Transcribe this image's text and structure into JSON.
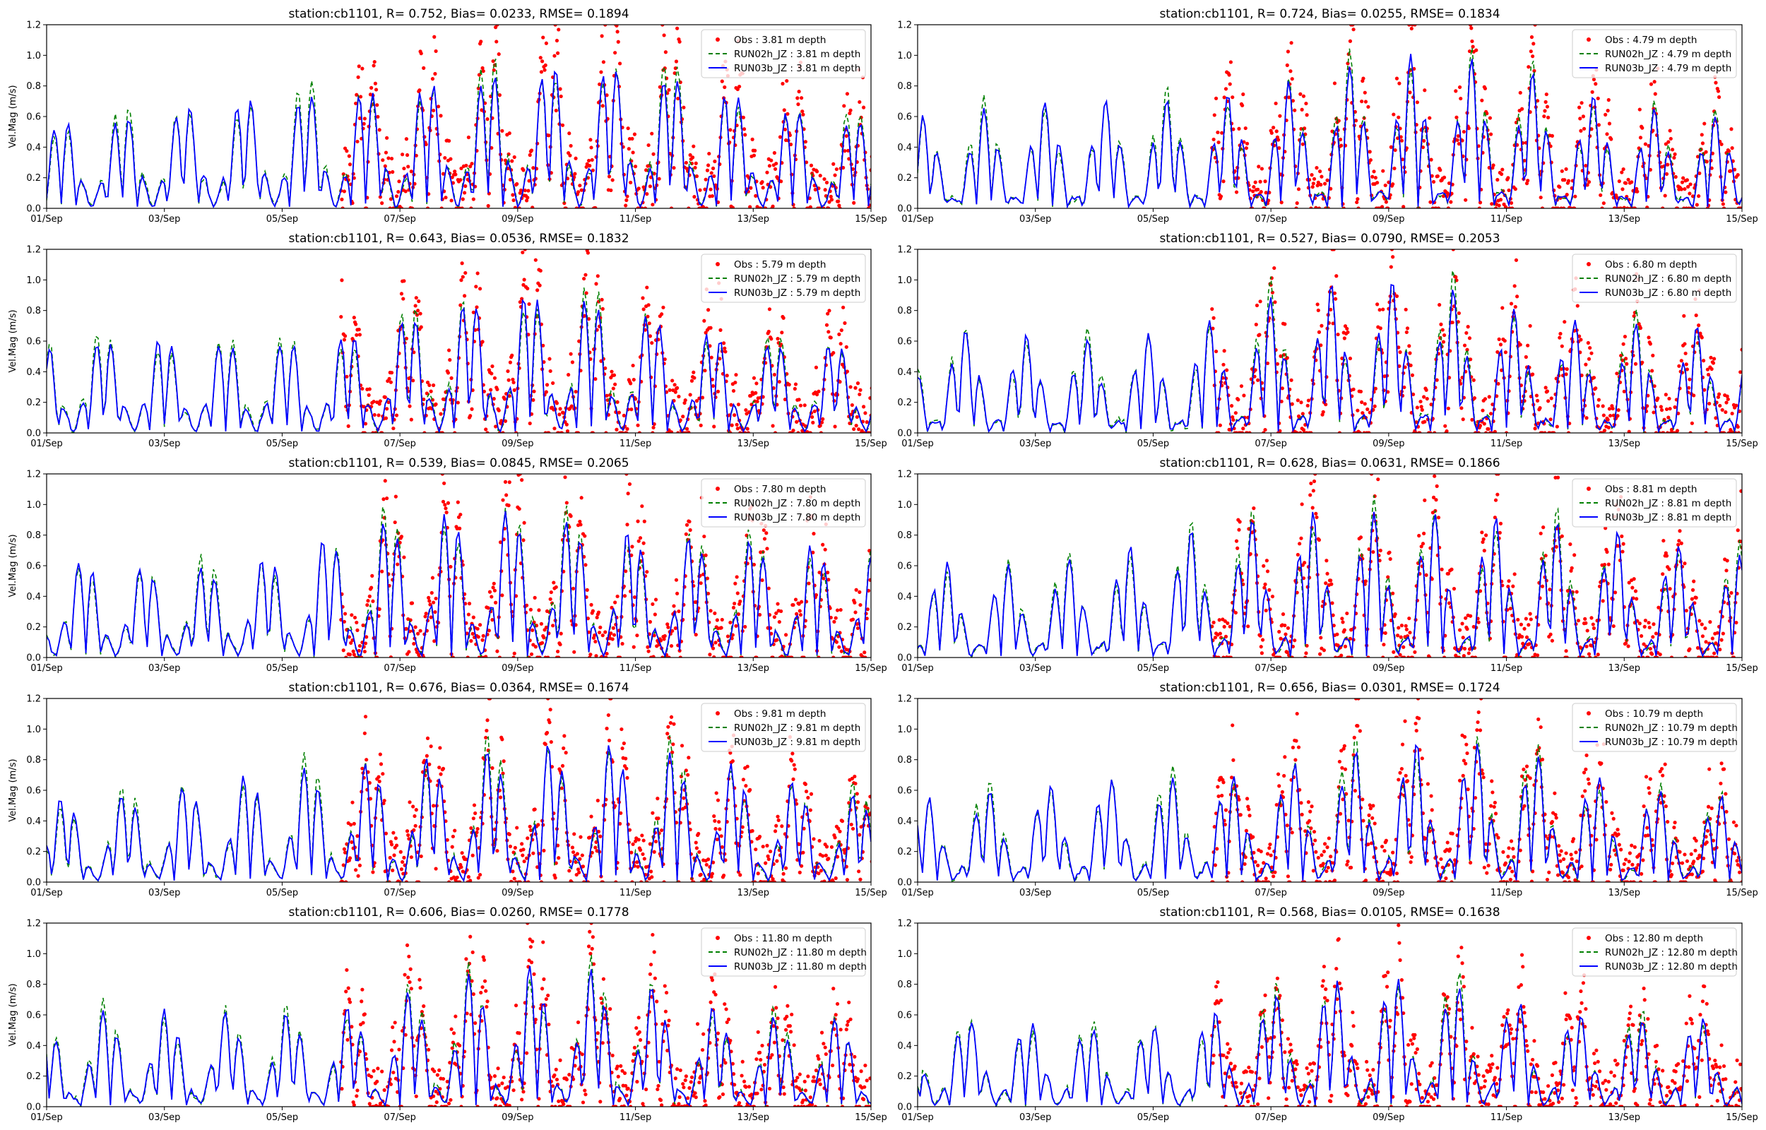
{
  "figure": {
    "station": "cb1101",
    "rows": 5,
    "cols": 2
  },
  "series_style": {
    "obs": {
      "label_prefix": "Obs",
      "color": "#ff0000",
      "marker": "dot"
    },
    "run02h": {
      "label_prefix": "RUN02h_JZ",
      "color": "#008000",
      "linestyle": "dashed"
    },
    "run03b": {
      "label_prefix": "RUN03b_JZ",
      "color": "#0000ff",
      "linestyle": "solid"
    }
  },
  "chart_data": [
    {
      "type": "line",
      "title": "station:cb1101, R= 0.752, Bias= 0.0233, RMSE= 0.1894",
      "depth": "3.81",
      "ylabel": "Vel.Mag (m/s)",
      "ylim": [
        0,
        1.2
      ],
      "yticks": [
        "0.0",
        "0.2",
        "0.4",
        "0.6",
        "0.8",
        "1.0",
        "1.2"
      ],
      "xticks": [
        "01/Sep",
        "03/Sep",
        "05/Sep",
        "07/Sep",
        "09/Sep",
        "11/Sep",
        "13/Sep",
        "15/Sep"
      ],
      "xlim_days": [
        0,
        14
      ],
      "legend": [
        "Obs : 3.81 m depth",
        "RUN02h_JZ : 3.81 m depth",
        "RUN03b_JZ : 3.81 m depth"
      ],
      "legend_position": "upper right",
      "obs_start_day": 5.0,
      "peak_scale": 1.0,
      "seed": 11
    },
    {
      "type": "line",
      "title": "station:cb1101, R= 0.724, Bias= 0.0255, RMSE= 0.1834",
      "depth": "4.79",
      "ylabel": "",
      "ylim": [
        0,
        1.2
      ],
      "yticks": [
        "0.0",
        "0.2",
        "0.4",
        "0.6",
        "0.8",
        "1.0",
        "1.2"
      ],
      "xticks": [
        "01/Sep",
        "03/Sep",
        "05/Sep",
        "07/Sep",
        "09/Sep",
        "11/Sep",
        "13/Sep",
        "15/Sep"
      ],
      "xlim_days": [
        0,
        14
      ],
      "legend": [
        "Obs : 4.79 m depth",
        "RUN02h_JZ : 4.79 m depth",
        "RUN03b_JZ : 4.79 m depth"
      ],
      "legend_position": "upper right",
      "obs_start_day": 5.0,
      "peak_scale": 0.95,
      "seed": 12
    },
    {
      "type": "line",
      "title": "station:cb1101, R= 0.643, Bias= 0.0536, RMSE= 0.1832",
      "depth": "5.79",
      "ylabel": "Vel.Mag (m/s)",
      "ylim": [
        0,
        1.2
      ],
      "yticks": [
        "0.0",
        "0.2",
        "0.4",
        "0.6",
        "0.8",
        "1.0",
        "1.2"
      ],
      "xticks": [
        "01/Sep",
        "03/Sep",
        "05/Sep",
        "07/Sep",
        "09/Sep",
        "11/Sep",
        "13/Sep",
        "15/Sep"
      ],
      "xlim_days": [
        0,
        14
      ],
      "legend": [
        "Obs : 5.79 m depth",
        "RUN02h_JZ : 5.79 m depth",
        "RUN03b_JZ : 5.79 m depth"
      ],
      "legend_position": "upper right",
      "obs_start_day": 5.0,
      "peak_scale": 0.92,
      "seed": 13
    },
    {
      "type": "line",
      "title": "station:cb1101, R= 0.527, Bias= 0.0790, RMSE= 0.2053",
      "depth": "6.80",
      "ylabel": "",
      "ylim": [
        0,
        1.2
      ],
      "yticks": [
        "0.0",
        "0.2",
        "0.4",
        "0.6",
        "0.8",
        "1.0",
        "1.2"
      ],
      "xticks": [
        "01/Sep",
        "03/Sep",
        "05/Sep",
        "07/Sep",
        "09/Sep",
        "11/Sep",
        "13/Sep",
        "15/Sep"
      ],
      "xlim_days": [
        0,
        14
      ],
      "legend": [
        "Obs : 6.80 m depth",
        "RUN02h_JZ : 6.80 m depth",
        "RUN03b_JZ : 6.80 m depth"
      ],
      "legend_position": "upper right",
      "obs_start_day": 5.0,
      "peak_scale": 0.95,
      "seed": 14
    },
    {
      "type": "line",
      "title": "station:cb1101, R= 0.539, Bias= 0.0845, RMSE= 0.2065",
      "depth": "7.80",
      "ylabel": "Vel.Mag (m/s)",
      "ylim": [
        0,
        1.2
      ],
      "yticks": [
        "0.0",
        "0.2",
        "0.4",
        "0.6",
        "0.8",
        "1.0",
        "1.2"
      ],
      "xticks": [
        "01/Sep",
        "03/Sep",
        "05/Sep",
        "07/Sep",
        "09/Sep",
        "11/Sep",
        "13/Sep",
        "15/Sep"
      ],
      "xlim_days": [
        0,
        14
      ],
      "legend": [
        "Obs : 7.80 m depth",
        "RUN02h_JZ : 7.80 m depth",
        "RUN03b_JZ : 7.80 m depth"
      ],
      "legend_position": "upper right",
      "obs_start_day": 5.0,
      "peak_scale": 1.0,
      "seed": 15
    },
    {
      "type": "line",
      "title": "station:cb1101, R= 0.628, Bias= 0.0631, RMSE= 0.1866",
      "depth": "8.81",
      "ylabel": "",
      "ylim": [
        0,
        1.2
      ],
      "yticks": [
        "0.0",
        "0.2",
        "0.4",
        "0.6",
        "0.8",
        "1.0",
        "1.2"
      ],
      "xticks": [
        "01/Sep",
        "03/Sep",
        "05/Sep",
        "07/Sep",
        "09/Sep",
        "11/Sep",
        "13/Sep",
        "15/Sep"
      ],
      "xlim_days": [
        0,
        14
      ],
      "legend": [
        "Obs : 8.81 m depth",
        "RUN02h_JZ : 8.81 m depth",
        "RUN03b_JZ : 8.81 m depth"
      ],
      "legend_position": "upper right",
      "obs_start_day": 5.0,
      "peak_scale": 1.0,
      "seed": 16
    },
    {
      "type": "line",
      "title": "station:cb1101, R= 0.676, Bias= 0.0364, RMSE= 0.1674",
      "depth": "9.81",
      "ylabel": "Vel.Mag (m/s)",
      "ylim": [
        0,
        1.2
      ],
      "yticks": [
        "0.0",
        "0.2",
        "0.4",
        "0.6",
        "0.8",
        "1.0",
        "1.2"
      ],
      "xticks": [
        "01/Sep",
        "03/Sep",
        "05/Sep",
        "07/Sep",
        "09/Sep",
        "11/Sep",
        "13/Sep",
        "15/Sep"
      ],
      "xlim_days": [
        0,
        14
      ],
      "legend": [
        "Obs : 9.81 m depth",
        "RUN02h_JZ : 9.81 m depth",
        "RUN03b_JZ : 9.81 m depth"
      ],
      "legend_position": "upper right",
      "obs_start_day": 5.0,
      "peak_scale": 0.95,
      "seed": 17
    },
    {
      "type": "line",
      "title": "station:cb1101, R= 0.656, Bias= 0.0301, RMSE= 0.1724",
      "depth": "10.79",
      "ylabel": "",
      "ylim": [
        0,
        1.2
      ],
      "yticks": [
        "0.0",
        "0.2",
        "0.4",
        "0.6",
        "0.8",
        "1.0",
        "1.2"
      ],
      "xticks": [
        "01/Sep",
        "03/Sep",
        "05/Sep",
        "07/Sep",
        "09/Sep",
        "11/Sep",
        "13/Sep",
        "15/Sep"
      ],
      "xlim_days": [
        0,
        14
      ],
      "legend": [
        "Obs : 10.79 m depth",
        "RUN02h_JZ : 10.79 m depth",
        "RUN03b_JZ : 10.79 m depth"
      ],
      "legend_position": "upper right",
      "obs_start_day": 5.0,
      "peak_scale": 0.9,
      "seed": 18
    },
    {
      "type": "line",
      "title": "station:cb1101, R= 0.606, Bias= 0.0260, RMSE= 0.1778",
      "depth": "11.80",
      "ylabel": "Vel.Mag (m/s)",
      "ylim": [
        0,
        1.2
      ],
      "yticks": [
        "0.0",
        "0.2",
        "0.4",
        "0.6",
        "0.8",
        "1.0",
        "1.2"
      ],
      "xticks": [
        "01/Sep",
        "03/Sep",
        "05/Sep",
        "07/Sep",
        "09/Sep",
        "11/Sep",
        "13/Sep",
        "15/Sep"
      ],
      "xlim_days": [
        0,
        14
      ],
      "legend": [
        "Obs : 11.80 m depth",
        "RUN02h_JZ : 11.80 m depth",
        "RUN03b_JZ : 11.80 m depth"
      ],
      "legend_position": "upper right",
      "obs_start_day": 5.0,
      "peak_scale": 0.88,
      "seed": 19
    },
    {
      "type": "line",
      "title": "station:cb1101, R= 0.568, Bias= 0.0105, RMSE= 0.1638",
      "depth": "12.80",
      "ylabel": "",
      "ylim": [
        0,
        1.2
      ],
      "yticks": [
        "0.0",
        "0.2",
        "0.4",
        "0.6",
        "0.8",
        "1.0",
        "1.2"
      ],
      "xticks": [
        "01/Sep",
        "03/Sep",
        "05/Sep",
        "07/Sep",
        "09/Sep",
        "11/Sep",
        "13/Sep",
        "15/Sep"
      ],
      "xlim_days": [
        0,
        14
      ],
      "legend": [
        "Obs : 12.80 m depth",
        "RUN02h_JZ : 12.80 m depth",
        "RUN03b_JZ : 12.80 m depth"
      ],
      "legend_position": "upper right",
      "obs_start_day": 5.0,
      "peak_scale": 0.82,
      "seed": 20
    }
  ]
}
